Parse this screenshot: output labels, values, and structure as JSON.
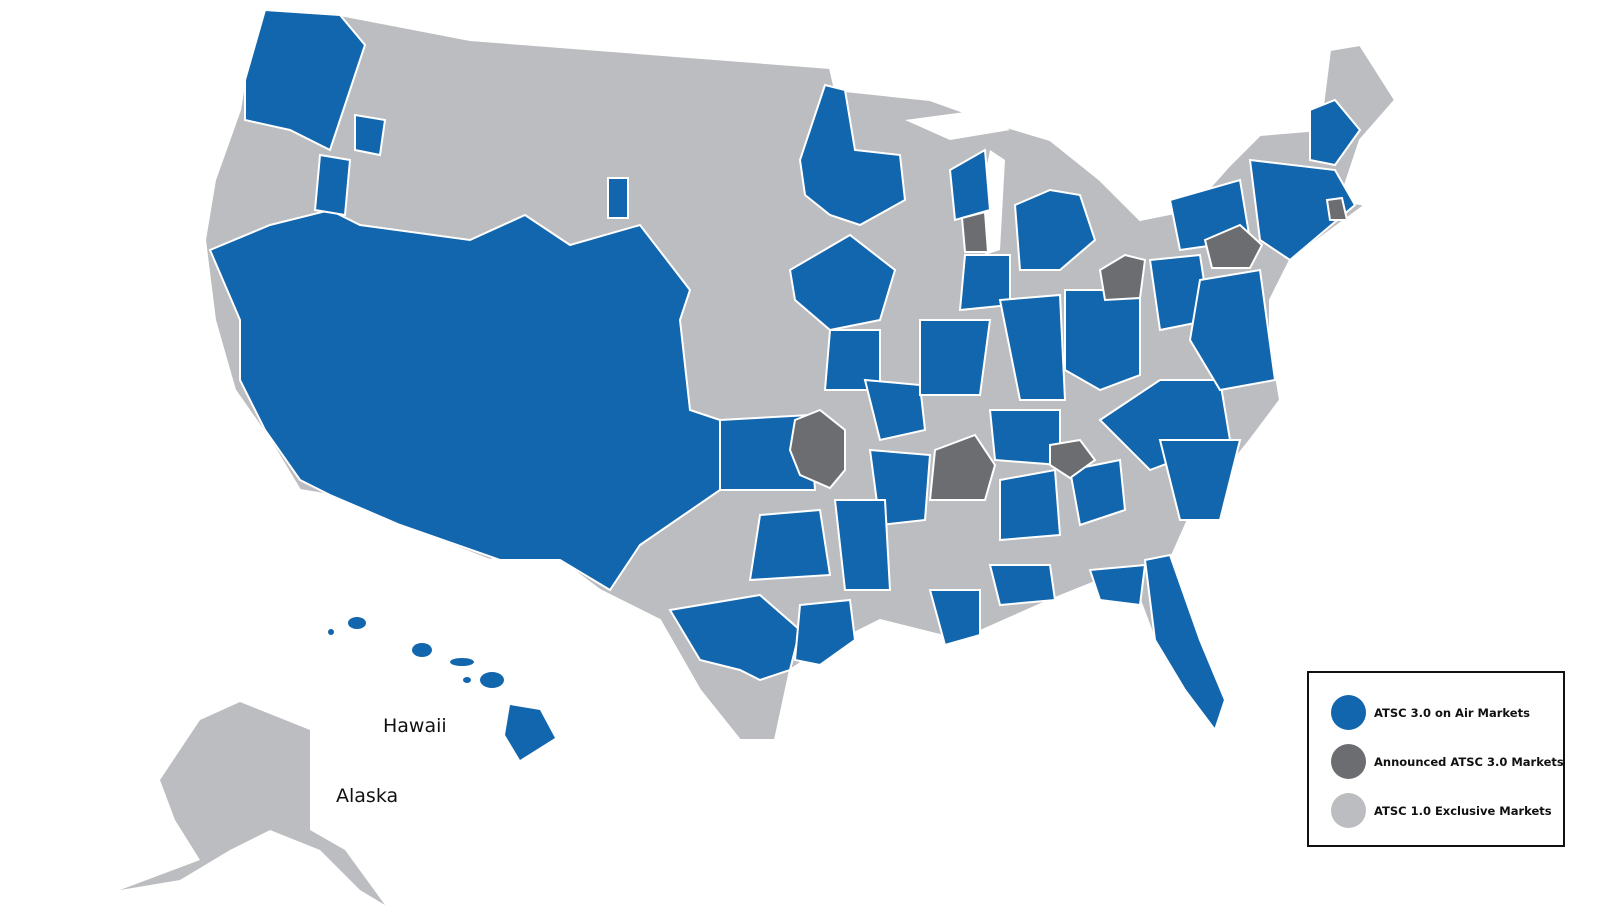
{
  "colors": {
    "on_air": "#1266ae",
    "announced": "#6c6d70",
    "exclusive": "#bcbdc0",
    "border": "#ffffff"
  },
  "labels": {
    "hawaii": "Hawaii",
    "alaska": "Alaska"
  },
  "legend": {
    "position": "bottom-right",
    "items": [
      {
        "label": "ATSC 3.0 on Air Markets",
        "color": "#1266ae"
      },
      {
        "label": "Announced ATSC 3.0 Markets",
        "color": "#6c6d70"
      },
      {
        "label": "ATSC 1.0 Exclusive Markets",
        "color": "#bcbdc0"
      }
    ]
  }
}
